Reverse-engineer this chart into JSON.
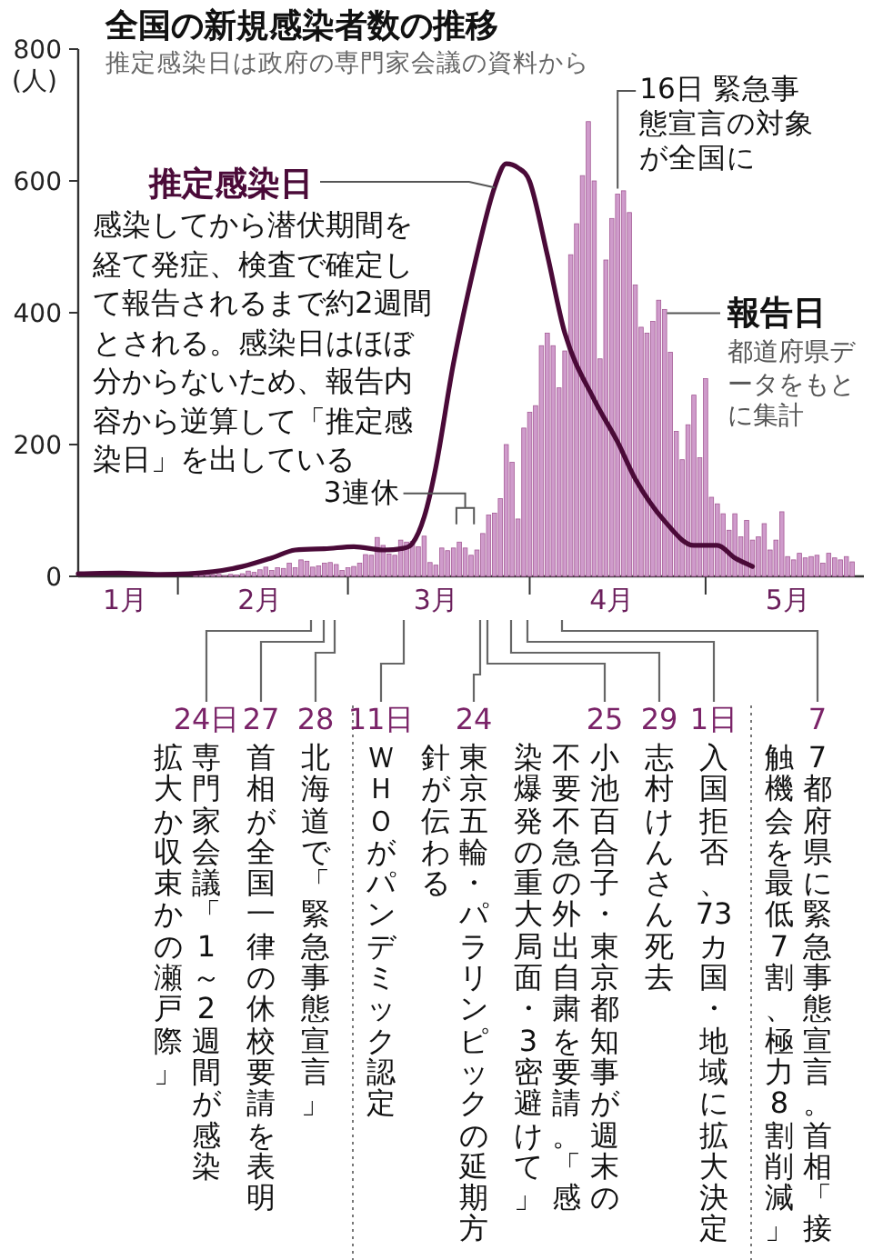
{
  "chart_data": {
    "type": "bar",
    "title": "全国の新規感染者数の推移",
    "subtitle": "推定感染日は政府の専門家会議の資料から",
    "ylabel": "(人)",
    "xlim": [
      "--01-15",
      "--05-28"
    ],
    "xticks": [
      {
        "value": "--01-23",
        "label": "1月"
      },
      {
        "value": "--02-01",
        "label": null
      },
      {
        "value": "--02-15",
        "label": "2月"
      },
      {
        "value": "--03-01",
        "label": null
      },
      {
        "value": "--03-16",
        "label": "3月"
      },
      {
        "value": "--04-01",
        "label": null
      },
      {
        "value": "--04-15",
        "label": "4月"
      },
      {
        "value": "--05-01",
        "label": null
      },
      {
        "value": "--05-15",
        "label": "5月"
      }
    ],
    "ylim": [
      0,
      800
    ],
    "yticks": [
      0,
      200,
      400,
      600,
      800
    ],
    "series": [
      {
        "name": "報告日",
        "color": "#cf9bcb",
        "x": [
          "--02-02",
          "--02-04",
          "--02-05",
          "--02-06",
          "--02-07",
          "--02-08",
          "--02-09",
          "--02-10",
          "--02-11",
          "--02-12",
          "--02-13",
          "--02-14",
          "--02-15",
          "--02-16",
          "--02-17",
          "--02-18",
          "--02-19",
          "--02-20",
          "--02-21",
          "--02-22",
          "--02-23",
          "--02-24",
          "--02-25",
          "--02-26",
          "--02-27",
          "--02-28",
          "--02-29",
          "--03-01",
          "--03-02",
          "--03-03",
          "--03-04",
          "--03-05",
          "--03-06",
          "--03-07",
          "--03-08",
          "--03-09",
          "--03-10",
          "--03-11",
          "--03-12",
          "--03-13",
          "--03-14",
          "--03-15",
          "--03-16",
          "--03-17",
          "--03-18",
          "--03-19",
          "--03-20",
          "--03-21",
          "--03-22",
          "--03-23",
          "--03-24",
          "--03-25",
          "--03-26",
          "--03-27",
          "--03-28",
          "--03-29",
          "--03-30",
          "--03-31",
          "--04-01",
          "--04-02",
          "--04-03",
          "--04-04",
          "--04-05",
          "--04-06",
          "--04-07",
          "--04-08",
          "--04-09",
          "--04-10",
          "--04-11",
          "--04-12",
          "--04-13",
          "--04-14",
          "--04-15",
          "--04-16",
          "--04-17",
          "--04-18",
          "--04-19",
          "--04-20",
          "--04-21",
          "--04-22",
          "--04-23",
          "--04-24",
          "--04-25",
          "--04-26",
          "--04-27",
          "--04-28",
          "--04-29",
          "--04-30",
          "--05-01",
          "--05-02",
          "--05-03",
          "--05-04",
          "--05-05",
          "--05-06",
          "--05-07",
          "--05-08",
          "--05-09",
          "--05-10",
          "--05-11",
          "--05-12",
          "--05-13",
          "--05-14",
          "--05-15",
          "--05-16",
          "--05-17",
          "--05-18",
          "--05-19",
          "--05-20",
          "--05-21",
          "--05-22",
          "--05-23",
          "--05-24",
          "--05-25",
          "--05-26"
        ],
        "values": [
          0,
          3,
          2,
          4,
          2,
          3,
          1,
          3,
          2,
          4,
          8,
          6,
          10,
          14,
          9,
          13,
          12,
          20,
          13,
          25,
          23,
          14,
          16,
          20,
          21,
          18,
          9,
          13,
          15,
          20,
          33,
          32,
          59,
          47,
          34,
          32,
          55,
          52,
          53,
          45,
          61,
          21,
          17,
          43,
          39,
          43,
          52,
          43,
          32,
          40,
          65,
          93,
          96,
          118,
          200,
          173,
          87,
          225,
          249,
          259,
          350,
          369,
          350,
          286,
          342,
          488,
          535,
          608,
          690,
          600,
          330,
          480,
          543,
          580,
          585,
          552,
          442,
          378,
          369,
          387,
          419,
          405,
          340,
          220,
          177,
          230,
          275,
          180,
          300,
          120,
          110,
          95,
          70,
          95,
          60,
          85,
          55,
          60,
          80,
          40,
          55,
          98,
          30,
          25,
          35,
          28,
          30,
          32,
          20,
          35,
          28,
          25,
          30,
          22
        ]
      },
      {
        "name": "推定感染日",
        "type": "line",
        "color": "#4a0a38",
        "x": [
          "--01-15",
          "--01-22",
          "--01-29",
          "--02-07",
          "--02-12",
          "--02-17",
          "--02-21",
          "--02-26",
          "--03-02",
          "--03-07",
          "--03-10",
          "--03-12",
          "--03-14",
          "--03-16",
          "--03-19",
          "--03-23",
          "--03-26",
          "--03-28",
          "--03-30",
          "--04-01",
          "--04-04",
          "--04-07",
          "--04-12",
          "--04-16",
          "--04-19",
          "--04-24",
          "--04-29",
          "--05-03",
          "--05-06",
          "--05-09"
        ],
        "values": [
          4,
          5,
          3,
          7,
          15,
          28,
          40,
          42,
          45,
          40,
          42,
          50,
          90,
          166,
          323,
          488,
          590,
          626,
          620,
          599,
          488,
          369,
          268,
          204,
          148,
          84,
          47,
          47,
          28,
          15
        ]
      }
    ],
    "annotations": [
      {
        "text": "感染してから潜伏期間を経て発症、検査で確定して報告されるまで約2週間とされる。感染日はほぼ分からないため、報告内容から逆算して「推定感染日」を出している",
        "x": "--03-26",
        "y": 590
      },
      {
        "text": "都道府県データをもとに集計",
        "x": "--04-24",
        "y": 405
      },
      {
        "text": "16日 緊急事態宣言の対象が全国に",
        "x": "--04-16",
        "y": 580
      },
      {
        "text": "3連休",
        "x": "--03-21",
        "y": 43
      },
      "24日",
      "専門家会議「1～2週間が感染",
      "拡大か収束かの瀬戸際」",
      "27",
      "首相が全国一律の休校要請を表明",
      "28",
      "北海道で「緊急事態宣言」",
      "11日",
      "ＷＨＯがパンデミック認定",
      "24",
      "東京五輪・パラリンピックの延期方",
      "針が伝わる",
      "25",
      "小池百合子・東京都知事が週末の",
      "不要不急の外出自粛を要請。「感",
      "染爆発の重大局面・3密避けて」",
      "29",
      "志村けんさん死去",
      "1日",
      "入国拒否、73カ国・地域に拡大決定",
      "7",
      "7都府県に緊急事態宣言。首相「接",
      "触機会を最低7割、極力8割削減」"
    ]
  }
}
